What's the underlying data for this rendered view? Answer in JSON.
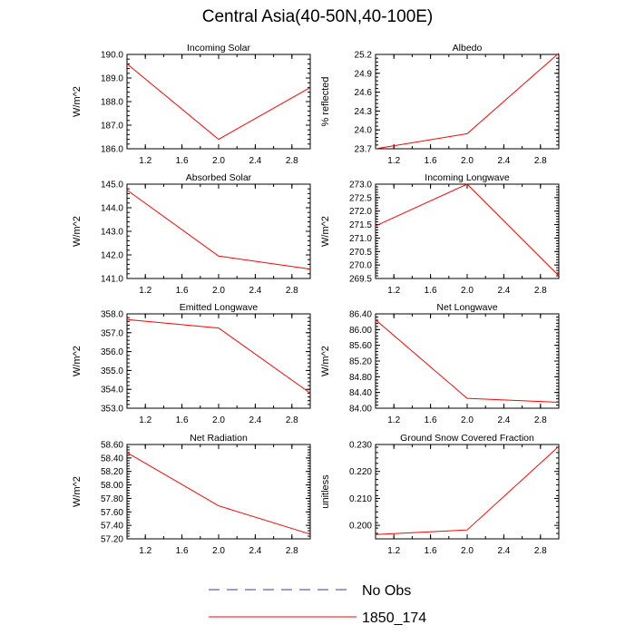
{
  "title": "Central Asia(40-50N,40-100E)",
  "colors": {
    "series": "#ff0000",
    "obs": "#3a3aa0",
    "axis": "#000000"
  },
  "legend": {
    "items": [
      {
        "label": "No Obs",
        "color": "#3a3aa0",
        "style": "dashed"
      },
      {
        "label": "1850_174",
        "color": "#ff0000",
        "style": "solid"
      }
    ]
  },
  "chart_data": [
    {
      "type": "line",
      "title": "Incoming Solar",
      "xlabel": "",
      "ylabel": "W/m^2",
      "x": [
        1.0,
        2.0,
        3.0
      ],
      "series": [
        {
          "name": "1850_174",
          "values": [
            189.6,
            186.4,
            188.6
          ]
        }
      ],
      "xlim": [
        1.0,
        3.0
      ],
      "ylim": [
        186.0,
        190.0
      ],
      "xticks": [
        1.2,
        1.6,
        2.0,
        2.4,
        2.8
      ],
      "xtick_labels": [
        "1.2",
        "1.6",
        "2.0",
        "2.4",
        "2.8"
      ],
      "yticks": [
        186.0,
        187.0,
        188.0,
        189.0,
        190.0
      ],
      "ytick_labels": [
        "186.0",
        "187.0",
        "188.0",
        "189.0",
        "190.0"
      ]
    },
    {
      "type": "line",
      "title": "Albedo",
      "xlabel": "",
      "ylabel": "% reflected",
      "x": [
        1.0,
        2.0,
        3.0
      ],
      "series": [
        {
          "name": "1850_174",
          "values": [
            23.7,
            23.94,
            25.22
          ]
        }
      ],
      "xlim": [
        1.0,
        3.0
      ],
      "ylim": [
        23.7,
        25.2
      ],
      "xticks": [
        1.2,
        1.6,
        2.0,
        2.4,
        2.8
      ],
      "xtick_labels": [
        "1.2",
        "1.6",
        "2.0",
        "2.4",
        "2.8"
      ],
      "yticks": [
        23.7,
        24.0,
        24.3,
        24.6,
        24.9,
        25.2
      ],
      "ytick_labels": [
        "23.7",
        "24.0",
        "24.3",
        "24.6",
        "24.9",
        "25.2"
      ]
    },
    {
      "type": "line",
      "title": "Absorbed Solar",
      "xlabel": "",
      "ylabel": "W/m^2",
      "x": [
        1.0,
        2.0,
        3.0
      ],
      "series": [
        {
          "name": "1850_174",
          "values": [
            144.75,
            141.95,
            141.4
          ]
        }
      ],
      "xlim": [
        1.0,
        3.0
      ],
      "ylim": [
        141.0,
        145.0
      ],
      "xticks": [
        1.2,
        1.6,
        2.0,
        2.4,
        2.8
      ],
      "xtick_labels": [
        "1.2",
        "1.6",
        "2.0",
        "2.4",
        "2.8"
      ],
      "yticks": [
        141.0,
        142.0,
        143.0,
        144.0,
        145.0
      ],
      "ytick_labels": [
        "141.0",
        "142.0",
        "143.0",
        "144.0",
        "145.0"
      ]
    },
    {
      "type": "line",
      "title": "Incoming Longwave",
      "xlabel": "",
      "ylabel": "W/m^2",
      "x": [
        1.0,
        2.0,
        3.0
      ],
      "series": [
        {
          "name": "1850_174",
          "values": [
            271.45,
            273.0,
            269.6
          ]
        }
      ],
      "xlim": [
        1.0,
        3.0
      ],
      "ylim": [
        269.5,
        273.0
      ],
      "xticks": [
        1.2,
        1.6,
        2.0,
        2.4,
        2.8
      ],
      "xtick_labels": [
        "1.2",
        "1.6",
        "2.0",
        "2.4",
        "2.8"
      ],
      "yticks": [
        269.5,
        270.0,
        270.5,
        271.0,
        271.5,
        272.0,
        272.5,
        273.0
      ],
      "ytick_labels": [
        "269.5",
        "270.0",
        "270.5",
        "271.0",
        "271.5",
        "272.0",
        "272.5",
        "273.0"
      ]
    },
    {
      "type": "line",
      "title": "Emitted Longwave",
      "xlabel": "",
      "ylabel": "W/m^2",
      "x": [
        1.0,
        2.0,
        3.0
      ],
      "series": [
        {
          "name": "1850_174",
          "values": [
            357.7,
            357.25,
            353.8
          ]
        }
      ],
      "xlim": [
        1.0,
        3.0
      ],
      "ylim": [
        353.0,
        358.0
      ],
      "xticks": [
        1.2,
        1.6,
        2.0,
        2.4,
        2.8
      ],
      "xtick_labels": [
        "1.2",
        "1.6",
        "2.0",
        "2.4",
        "2.8"
      ],
      "yticks": [
        353.0,
        354.0,
        355.0,
        356.0,
        357.0,
        358.0
      ],
      "ytick_labels": [
        "353.0",
        "354.0",
        "355.0",
        "356.0",
        "357.0",
        "358.0"
      ]
    },
    {
      "type": "line",
      "title": "Net Longwave",
      "xlabel": "",
      "ylabel": "W/m^2",
      "x": [
        1.0,
        2.0,
        3.0
      ],
      "series": [
        {
          "name": "1850_174",
          "values": [
            86.25,
            84.25,
            84.15
          ]
        }
      ],
      "xlim": [
        1.0,
        3.0
      ],
      "ylim": [
        84.0,
        86.4
      ],
      "xticks": [
        1.2,
        1.6,
        2.0,
        2.4,
        2.8
      ],
      "xtick_labels": [
        "1.2",
        "1.6",
        "2.0",
        "2.4",
        "2.8"
      ],
      "yticks": [
        84.0,
        84.4,
        84.8,
        85.2,
        85.6,
        86.0,
        86.4
      ],
      "ytick_labels": [
        "84.00",
        "84.40",
        "84.80",
        "85.20",
        "85.60",
        "86.00",
        "86.40"
      ]
    },
    {
      "type": "line",
      "title": "Net Radiation",
      "xlabel": "",
      "ylabel": "W/m^2",
      "x": [
        1.0,
        2.0,
        3.0
      ],
      "series": [
        {
          "name": "1850_174",
          "values": [
            58.48,
            57.69,
            57.27
          ]
        }
      ],
      "xlim": [
        1.0,
        3.0
      ],
      "ylim": [
        57.2,
        58.6
      ],
      "xticks": [
        1.2,
        1.6,
        2.0,
        2.4,
        2.8
      ],
      "xtick_labels": [
        "1.2",
        "1.6",
        "2.0",
        "2.4",
        "2.8"
      ],
      "yticks": [
        57.2,
        57.4,
        57.6,
        57.8,
        58.0,
        58.2,
        58.4,
        58.6
      ],
      "ytick_labels": [
        "57.20",
        "57.40",
        "57.60",
        "57.80",
        "58.00",
        "58.20",
        "58.40",
        "58.60"
      ]
    },
    {
      "type": "line",
      "title": "Ground Snow Covered Fraction",
      "xlabel": "",
      "ylabel": "unitless",
      "x": [
        1.0,
        2.0,
        3.0
      ],
      "series": [
        {
          "name": "1850_174",
          "values": [
            0.1966,
            0.1983,
            0.2293
          ]
        }
      ],
      "xlim": [
        1.0,
        3.0
      ],
      "ylim": [
        0.195,
        0.23
      ],
      "xticks": [
        1.2,
        1.6,
        2.0,
        2.4,
        2.8
      ],
      "xtick_labels": [
        "1.2",
        "1.6",
        "2.0",
        "2.4",
        "2.8"
      ],
      "yticks": [
        0.2,
        0.21,
        0.22,
        0.23
      ],
      "ytick_labels": [
        "0.200",
        "0.210",
        "0.220",
        "0.230"
      ]
    }
  ]
}
